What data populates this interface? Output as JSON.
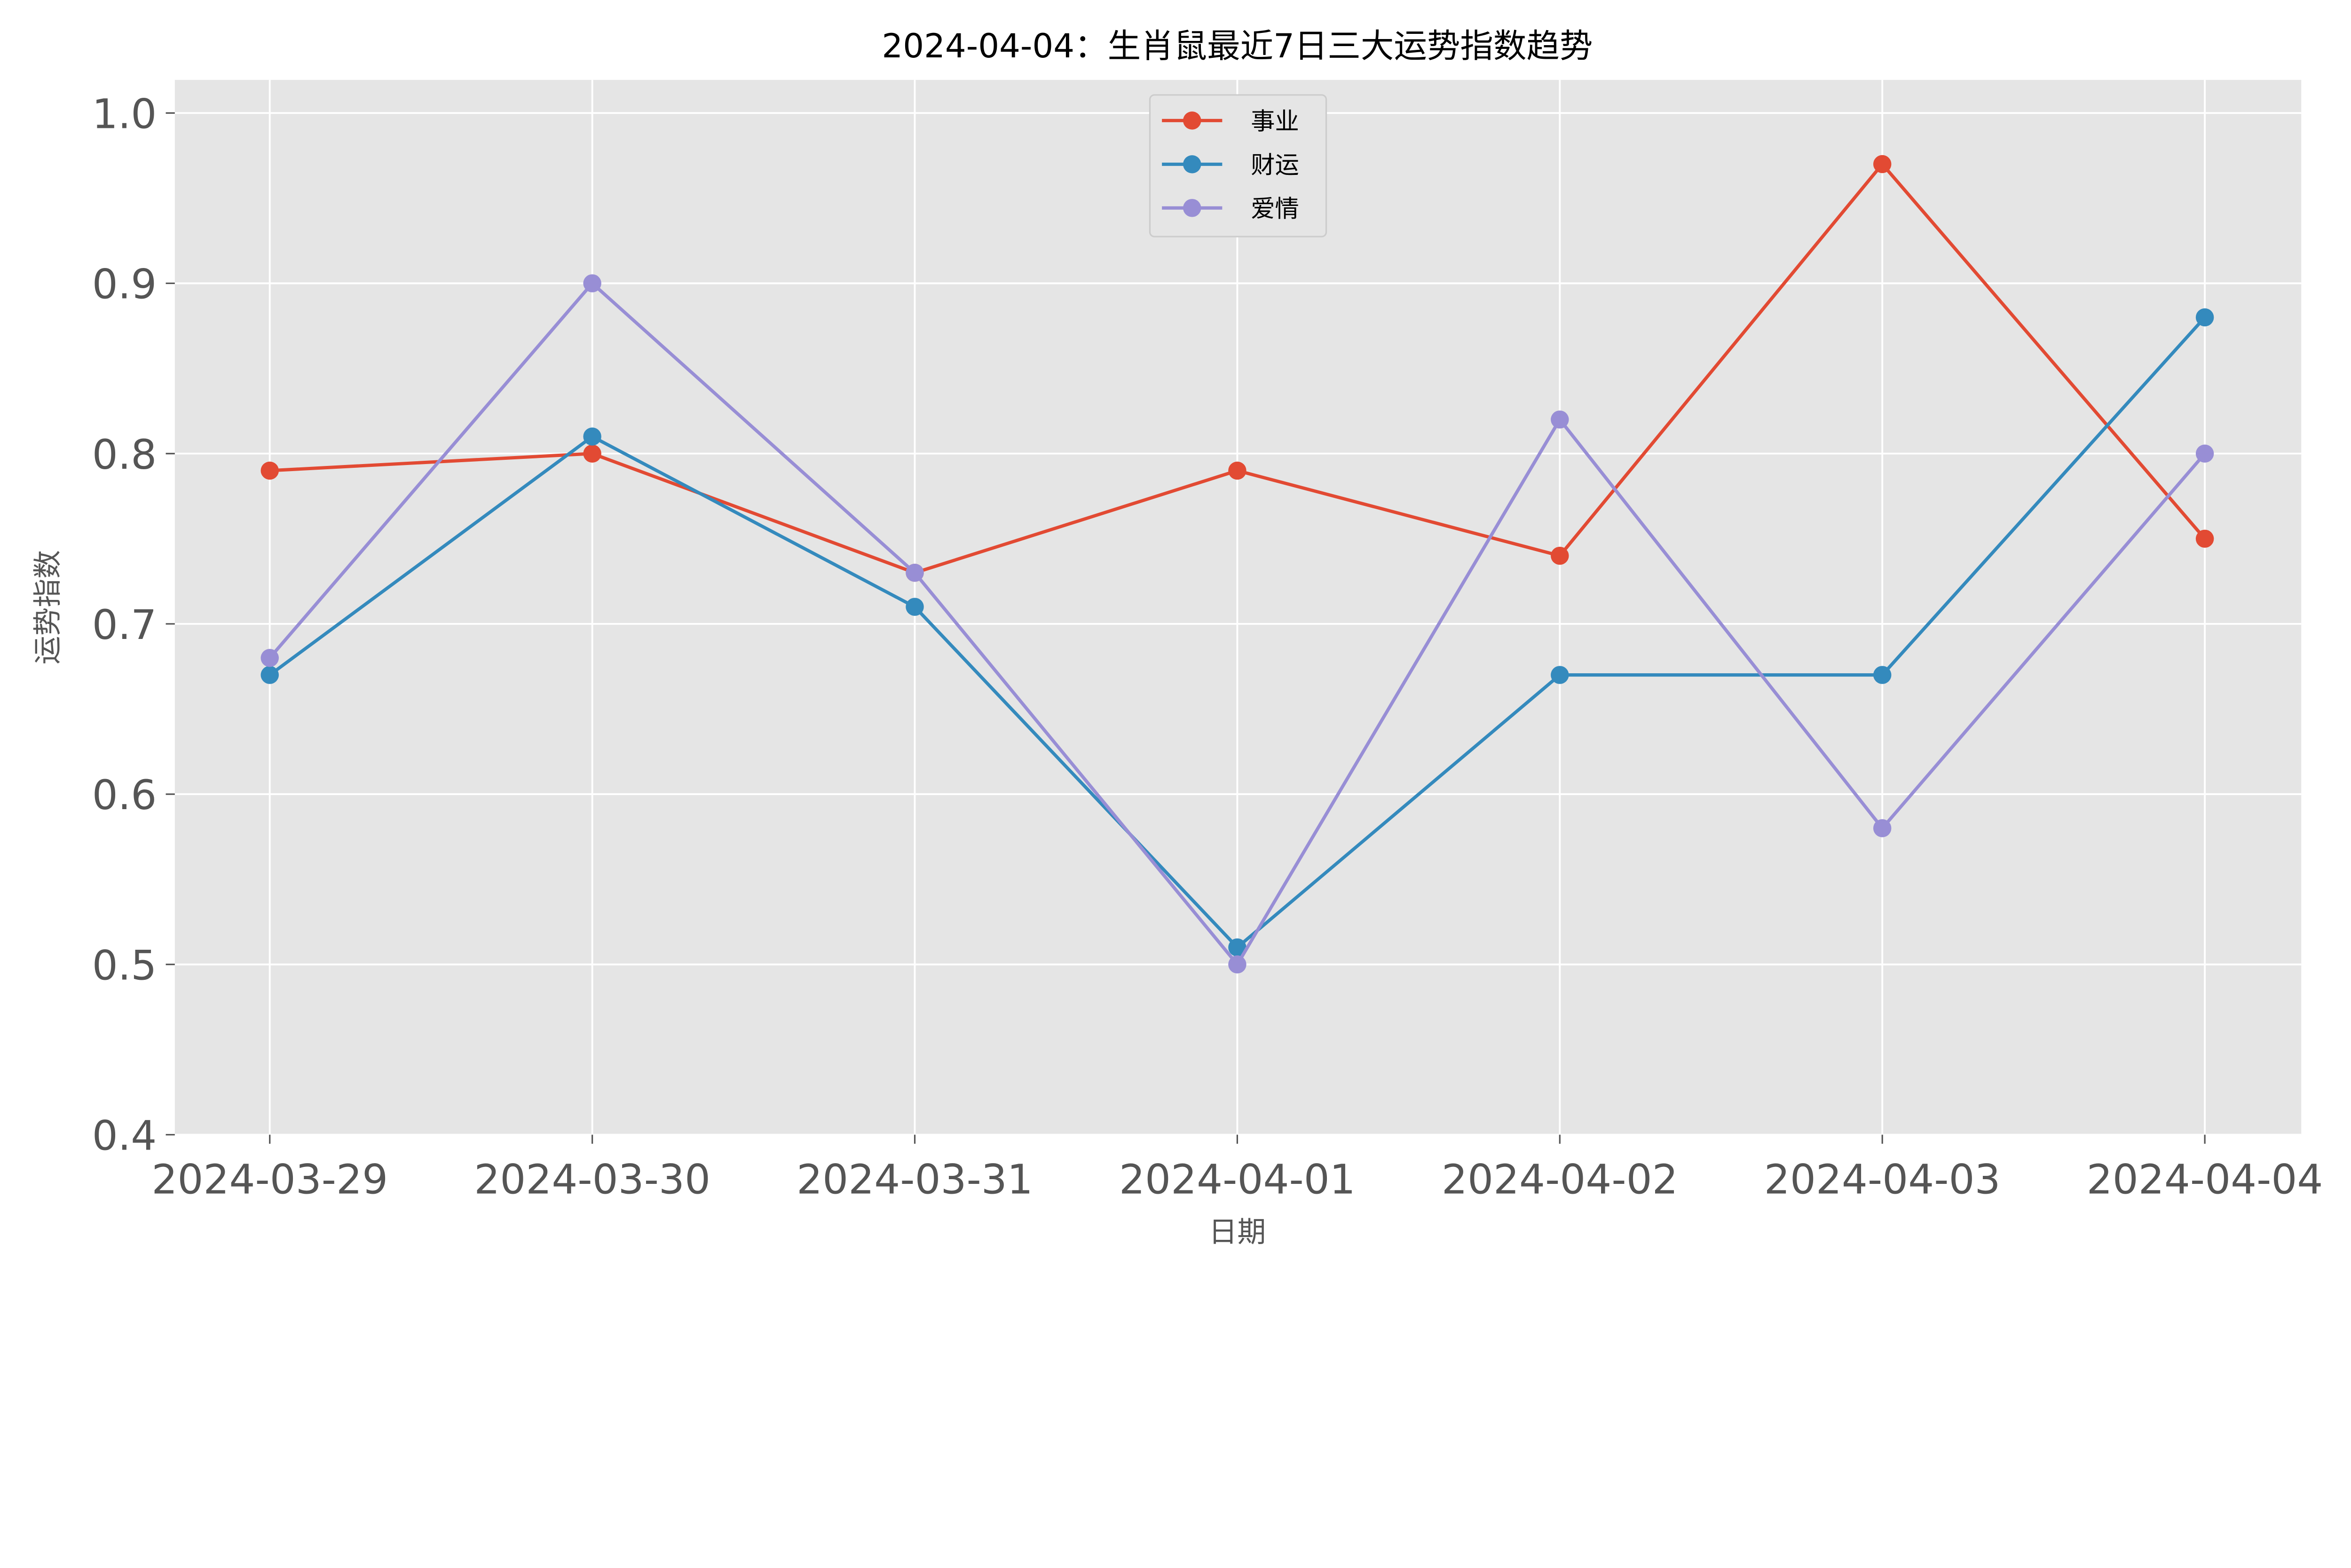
{
  "chart_data": {
    "type": "line",
    "title": "2024-04-04：生肖鼠最近7日三大运势指数趋势",
    "xlabel": "日期",
    "ylabel": "运势指数",
    "categories": [
      "2024-03-29",
      "2024-03-30",
      "2024-03-31",
      "2024-04-01",
      "2024-04-02",
      "2024-04-03",
      "2024-04-04"
    ],
    "ylim": [
      0.4,
      1.02
    ],
    "yticks": [
      "0.4",
      "0.5",
      "0.6",
      "0.7",
      "0.8",
      "0.9",
      "1.0"
    ],
    "grid": true,
    "legend_position": "top-center",
    "series": [
      {
        "name": "事业",
        "color": "#E24A33",
        "values": [
          0.79,
          0.8,
          0.73,
          0.79,
          0.74,
          0.97,
          0.75
        ]
      },
      {
        "name": "财运",
        "color": "#348ABD",
        "values": [
          0.67,
          0.81,
          0.71,
          0.51,
          0.67,
          0.67,
          0.88
        ]
      },
      {
        "name": "爱情",
        "color": "#988ED5",
        "values": [
          0.68,
          0.9,
          0.73,
          0.5,
          0.82,
          0.58,
          0.8
        ]
      }
    ]
  }
}
